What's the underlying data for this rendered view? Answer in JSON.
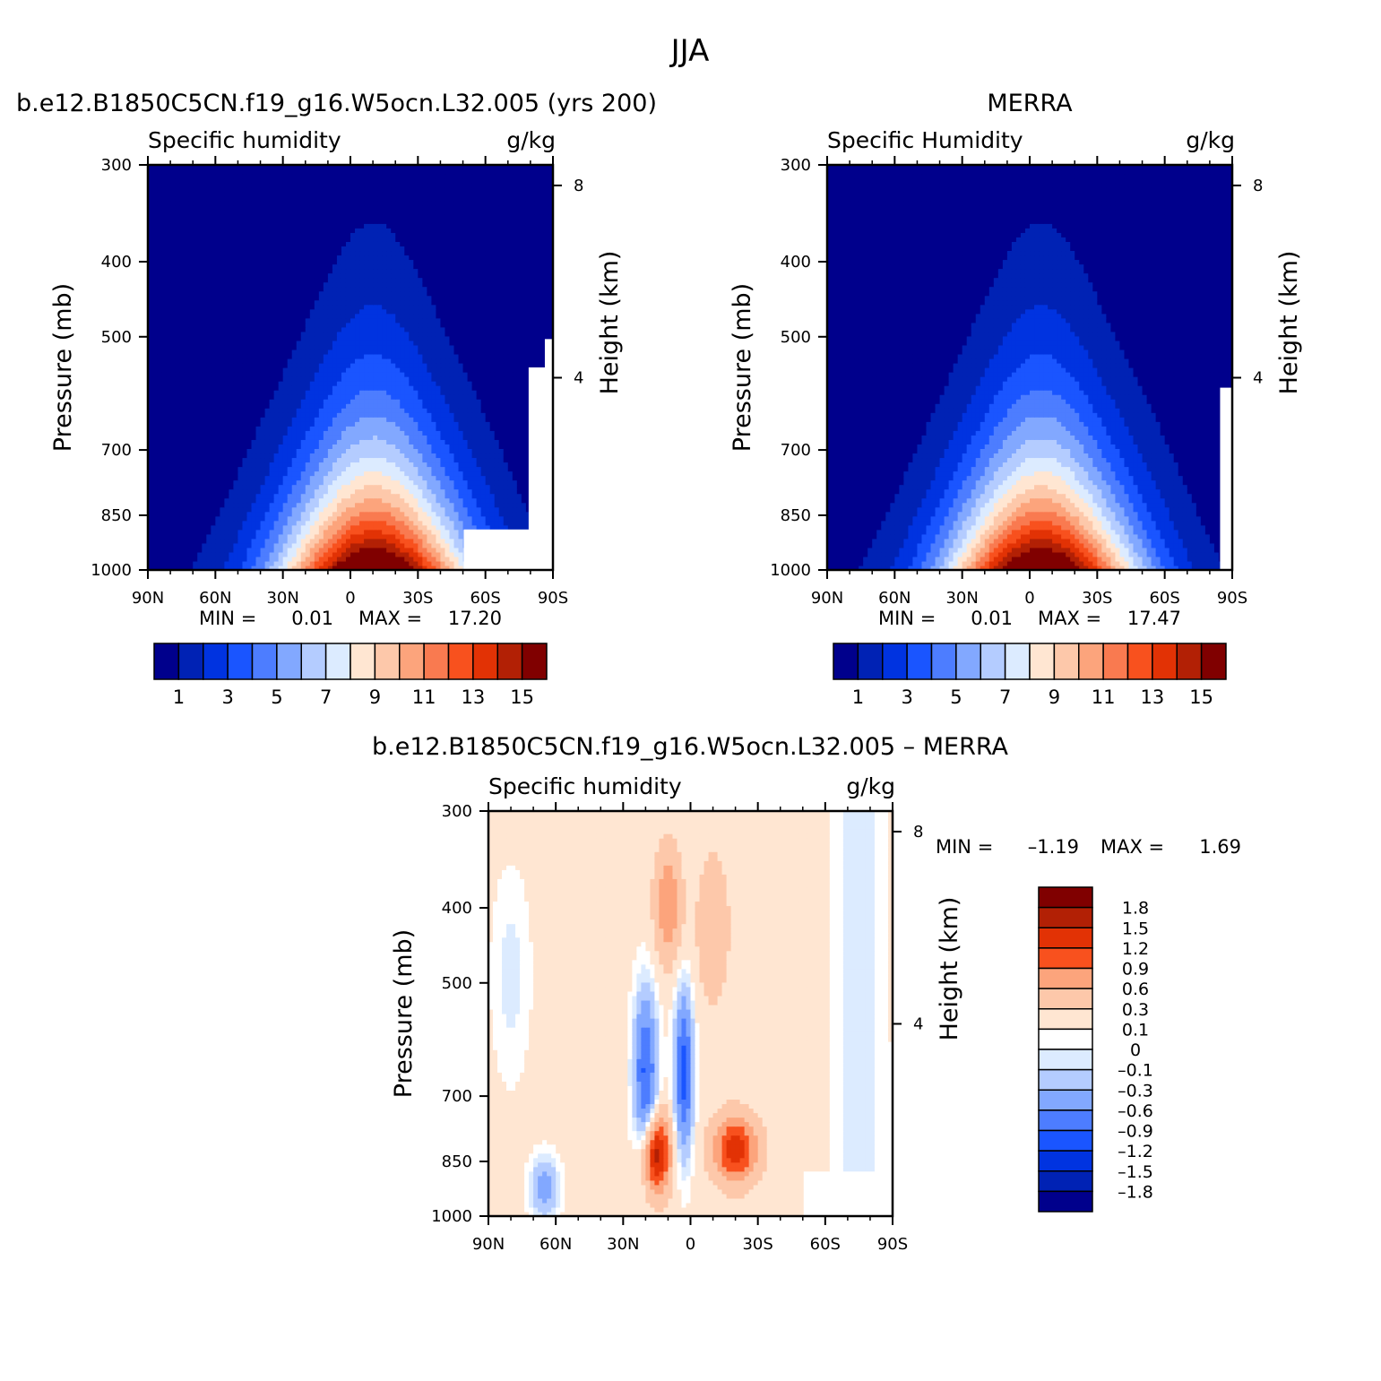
{
  "page_title": "JJA",
  "chart_data": [
    {
      "type": "heatmap",
      "panel_title": "b.e12.B1850C5CN.f19_g16.W5ocn.L32.005 (yrs 200)",
      "left_label": "Specific humidity",
      "units": "g/kg",
      "ylabel": "Pressure (mb)",
      "y2label": "Height (km)",
      "x_ticks": [
        "90N",
        "60N",
        "30N",
        "0",
        "30S",
        "60S",
        "90S"
      ],
      "y_ticks": [
        "300",
        "400",
        "500",
        "700",
        "850",
        "1000"
      ],
      "y2_ticks": [
        "8",
        "4"
      ],
      "min_label": "MIN =",
      "min_value": "0.01",
      "max_label": "MAX =",
      "max_value": "17.20",
      "peak_lat": -10,
      "colorbar_labels": [
        "1",
        "3",
        "5",
        "7",
        "9",
        "11",
        "13",
        "15"
      ],
      "colorbar_colors": [
        "#00008c",
        "#0022b4",
        "#0033e0",
        "#1a55ff",
        "#4d7dff",
        "#82a8ff",
        "#b4ccff",
        "#dcebff",
        "#ffe6d2",
        "#fdc8aa",
        "#fca47c",
        "#f97a50",
        "#f8511e",
        "#e23205",
        "#b22005",
        "#800000"
      ]
    },
    {
      "type": "heatmap",
      "panel_title": "MERRA",
      "left_label": "Specific Humidity",
      "units": "g/kg",
      "ylabel": "Pressure (mb)",
      "y2label": "Height (km)",
      "x_ticks": [
        "90N",
        "60N",
        "30N",
        "0",
        "30S",
        "60S",
        "90S"
      ],
      "y_ticks": [
        "300",
        "400",
        "500",
        "700",
        "850",
        "1000"
      ],
      "y2_ticks": [
        "8",
        "4"
      ],
      "min_label": "MIN =",
      "min_value": "0.01",
      "max_label": "MAX =",
      "max_value": "17.47",
      "peak_lat": -5,
      "colorbar_labels": [
        "1",
        "3",
        "5",
        "7",
        "9",
        "11",
        "13",
        "15"
      ],
      "colorbar_colors": [
        "#00008c",
        "#0022b4",
        "#0033e0",
        "#1a55ff",
        "#4d7dff",
        "#82a8ff",
        "#b4ccff",
        "#dcebff",
        "#ffe6d2",
        "#fdc8aa",
        "#fca47c",
        "#f97a50",
        "#f8511e",
        "#e23205",
        "#b22005",
        "#800000"
      ]
    },
    {
      "type": "heatmap",
      "panel_title": "b.e12.B1850C5CN.f19_g16.W5ocn.L32.005 – MERRA",
      "left_label": "Specific humidity",
      "units": "g/kg",
      "ylabel": "Pressure (mb)",
      "y2label": "Height (km)",
      "x_ticks": [
        "90N",
        "60N",
        "30N",
        "0",
        "30S",
        "60S",
        "90S"
      ],
      "y_ticks": [
        "300",
        "400",
        "500",
        "700",
        "850",
        "1000"
      ],
      "y2_ticks": [
        "8",
        "4"
      ],
      "min_label": "MIN =",
      "min_value": "–1.19",
      "max_label": "MAX =",
      "max_value": "1.69",
      "colorbar_labels": [
        "1.8",
        "1.5",
        "1.2",
        "0.9",
        "0.6",
        "0.3",
        "0.1",
        "0",
        "–0.1",
        "–0.3",
        "–0.6",
        "–0.9",
        "–1.2",
        "–1.5",
        "–1.8"
      ],
      "colorbar_colors": [
        "#800000",
        "#b22005",
        "#e23205",
        "#f8511e",
        "#fca47c",
        "#fdc8aa",
        "#ffe6d2",
        "#ffffff",
        "#dcebff",
        "#b4ccff",
        "#82a8ff",
        "#4d7dff",
        "#1a55ff",
        "#0033e0",
        "#0022b4",
        "#00008c"
      ]
    }
  ]
}
